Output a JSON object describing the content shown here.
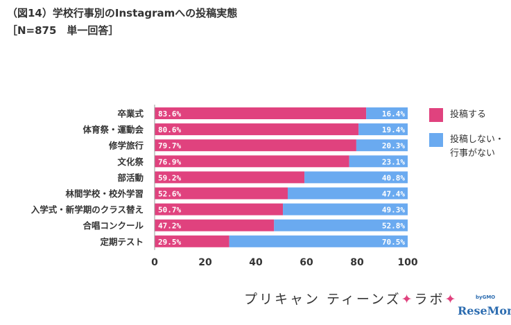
{
  "title": "（図14）学校行事別のInstagramへの投稿実態",
  "subtitle": "［N=875　単一回答］",
  "colors": {
    "posted": "#e0427e",
    "not_posted": "#6aaaf0"
  },
  "chart_data": {
    "type": "bar",
    "orientation": "horizontal",
    "stacked": true,
    "categories": [
      "卒業式",
      "体育祭・運動会",
      "修学旅行",
      "文化祭",
      "部活動",
      "林間学校・校外学習",
      "入学式・新学期のクラス替え",
      "合唱コンクール",
      "定期テスト"
    ],
    "series": [
      {
        "name": "投稿する",
        "values": [
          83.6,
          80.6,
          79.7,
          76.9,
          59.2,
          52.6,
          50.7,
          47.2,
          29.5
        ]
      },
      {
        "name": "投稿しない・\n行事がない",
        "values": [
          16.4,
          19.4,
          20.3,
          23.1,
          40.8,
          47.4,
          49.3,
          52.8,
          70.5
        ]
      }
    ],
    "xlim": [
      0,
      100
    ],
    "xticks": [
      "0",
      "20",
      "40",
      "60",
      "80",
      "100"
    ],
    "legend_position": "right",
    "grid": false
  },
  "footer": {
    "brand_part1": "プリキャン ティーンズ",
    "brand_spark": "✦",
    "brand_part2": "ラボ",
    "gmo": "byGMO",
    "logo": "ReseMom"
  }
}
